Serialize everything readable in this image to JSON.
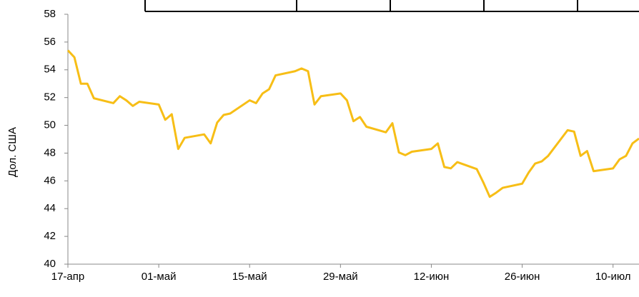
{
  "chart_data": {
    "type": "line",
    "y_label": "Дол. США",
    "x": [
      0,
      1,
      2,
      3,
      4,
      7,
      8,
      9,
      10,
      11,
      14,
      15,
      16,
      17,
      18,
      21,
      22,
      23,
      24,
      25,
      28,
      29,
      30,
      31,
      32,
      35,
      36,
      37,
      38,
      39,
      42,
      43,
      44,
      45,
      46,
      49,
      50,
      51,
      52,
      53,
      56,
      57,
      58,
      59,
      60,
      63,
      64,
      65,
      66,
      67,
      70,
      71,
      72,
      73,
      74,
      77,
      78,
      79,
      80,
      81,
      84,
      85,
      86,
      87,
      88
    ],
    "series": [
      {
        "color": "#f7be16",
        "values": [
          55.4,
          54.9,
          53.0,
          53.0,
          51.95,
          51.6,
          52.1,
          51.8,
          51.4,
          51.7,
          51.5,
          50.4,
          50.8,
          48.3,
          49.1,
          49.35,
          48.7,
          50.2,
          50.75,
          50.85,
          51.8,
          51.6,
          52.3,
          52.6,
          53.6,
          53.9,
          54.1,
          53.9,
          51.5,
          52.1,
          52.3,
          51.8,
          50.3,
          50.6,
          49.9,
          49.5,
          50.15,
          48.05,
          47.85,
          48.1,
          48.3,
          48.7,
          47.0,
          46.9,
          47.35,
          46.85,
          45.9,
          44.85,
          45.15,
          45.5,
          45.8,
          46.6,
          47.25,
          47.4,
          47.8,
          49.65,
          49.55,
          47.8,
          48.15,
          46.7,
          46.9,
          47.55,
          47.8,
          48.7,
          49.05
        ]
      }
    ],
    "xlim": [
      0,
      88
    ],
    "xticks": [
      {
        "value": 0,
        "label": "17-апр"
      },
      {
        "value": 14,
        "label": "01-май"
      },
      {
        "value": 28,
        "label": "15-май"
      },
      {
        "value": 42,
        "label": "29-май"
      },
      {
        "value": 56,
        "label": "12-июн"
      },
      {
        "value": 70,
        "label": "26-июн"
      },
      {
        "value": 84,
        "label": "10-июл"
      }
    ],
    "ylim": [
      40,
      58
    ],
    "yticks": [
      40,
      42,
      44,
      46,
      48,
      50,
      52,
      54,
      56,
      58
    ]
  }
}
